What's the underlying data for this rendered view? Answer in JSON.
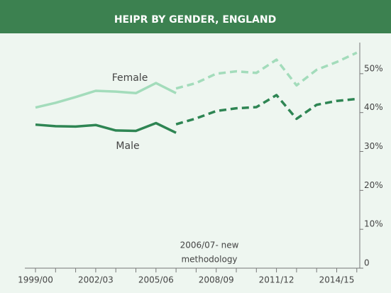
{
  "chart_data": {
    "type": "line",
    "title": "HEIPR BY GENDER, ENGLAND",
    "categories": [
      "1999/00",
      null,
      null,
      "2002/03",
      null,
      null,
      "2005/06",
      null,
      null,
      "2008/09",
      null,
      null,
      "2011/12",
      null,
      null,
      "2014/15",
      null
    ],
    "series": [
      {
        "name": "Female",
        "color": "#a3dcbb",
        "values": [
          41.3,
          42.5,
          44.0,
          45.6,
          45.4,
          45.0,
          47.6,
          45.0,
          null,
          null,
          null,
          null,
          null,
          null,
          null,
          null,
          null
        ],
        "dashed_values": [
          null,
          null,
          null,
          null,
          null,
          null,
          null,
          46.2,
          47.6,
          50.0,
          50.6,
          50.2,
          53.6,
          47.0,
          51.0,
          53.0,
          55.4
        ]
      },
      {
        "name": "Male",
        "color": "#2e8553",
        "values": [
          36.9,
          36.5,
          36.4,
          36.8,
          35.4,
          35.3,
          37.3,
          34.8,
          null,
          null,
          null,
          null,
          null,
          null,
          null,
          null,
          null
        ],
        "dashed_values": [
          null,
          null,
          null,
          null,
          null,
          null,
          null,
          37.0,
          38.5,
          40.4,
          41.1,
          41.4,
          44.5,
          38.4,
          42.0,
          43.0,
          43.5
        ]
      }
    ],
    "annotation": [
      "2006/07- new",
      "methodology"
    ],
    "ylim": [
      0,
      58
    ],
    "yticks": [
      0,
      {
        "value": 10,
        "label": "10%"
      },
      {
        "value": 20,
        "label": "20%"
      },
      {
        "value": 30,
        "label": "30%"
      },
      {
        "value": 40,
        "label": "40%"
      },
      {
        "value": 50,
        "label": "50%"
      }
    ],
    "title_color": "#3c8150"
  }
}
